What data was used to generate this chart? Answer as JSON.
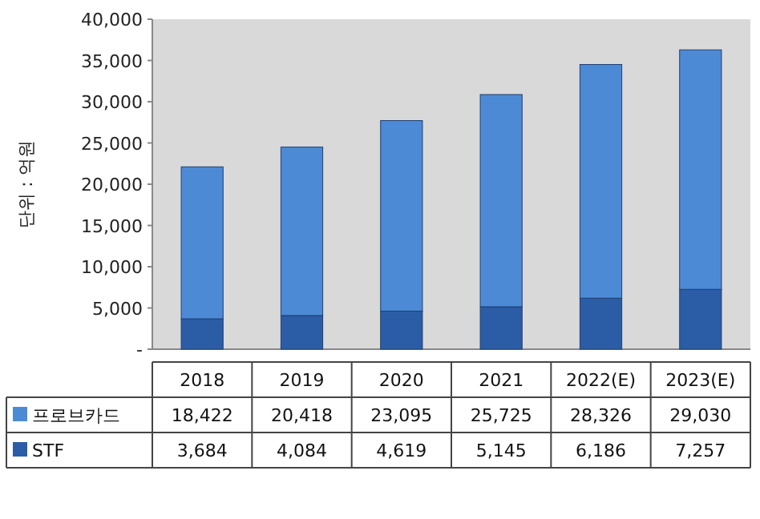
{
  "chart_data": {
    "type": "bar",
    "stacked": true,
    "ylabel": "단위 : 억원",
    "categories": [
      "2018",
      "2019",
      "2020",
      "2021",
      "2022(E)",
      "2023(E)"
    ],
    "series": [
      {
        "name": "STF",
        "color": "#2b5ca6",
        "values": [
          3684,
          4084,
          4619,
          5145,
          6186,
          7257
        ],
        "value_labels": [
          "3,684",
          "4,084",
          "4,619",
          "5,145",
          "6,186",
          "7,257"
        ]
      },
      {
        "name": "프로브카드",
        "color": "#4d8ad6",
        "values": [
          18422,
          20418,
          23095,
          25725,
          28326,
          29030
        ],
        "value_labels": [
          "18,422",
          "20,418",
          "23,095",
          "25,725",
          "28,326",
          "29,030"
        ]
      }
    ],
    "ylim": [
      0,
      40000
    ],
    "yticks": [
      {
        "value": 0,
        "label": "-"
      },
      {
        "value": 5000,
        "label": "5,000"
      },
      {
        "value": 10000,
        "label": "10,000"
      },
      {
        "value": 15000,
        "label": "15,000"
      },
      {
        "value": 20000,
        "label": "20,000"
      },
      {
        "value": 25000,
        "label": "25,000"
      },
      {
        "value": 30000,
        "label": "30,000"
      },
      {
        "value": 35000,
        "label": "35,000"
      },
      {
        "value": 40000,
        "label": "40,000"
      }
    ],
    "grid": false,
    "legend": "bottom"
  }
}
